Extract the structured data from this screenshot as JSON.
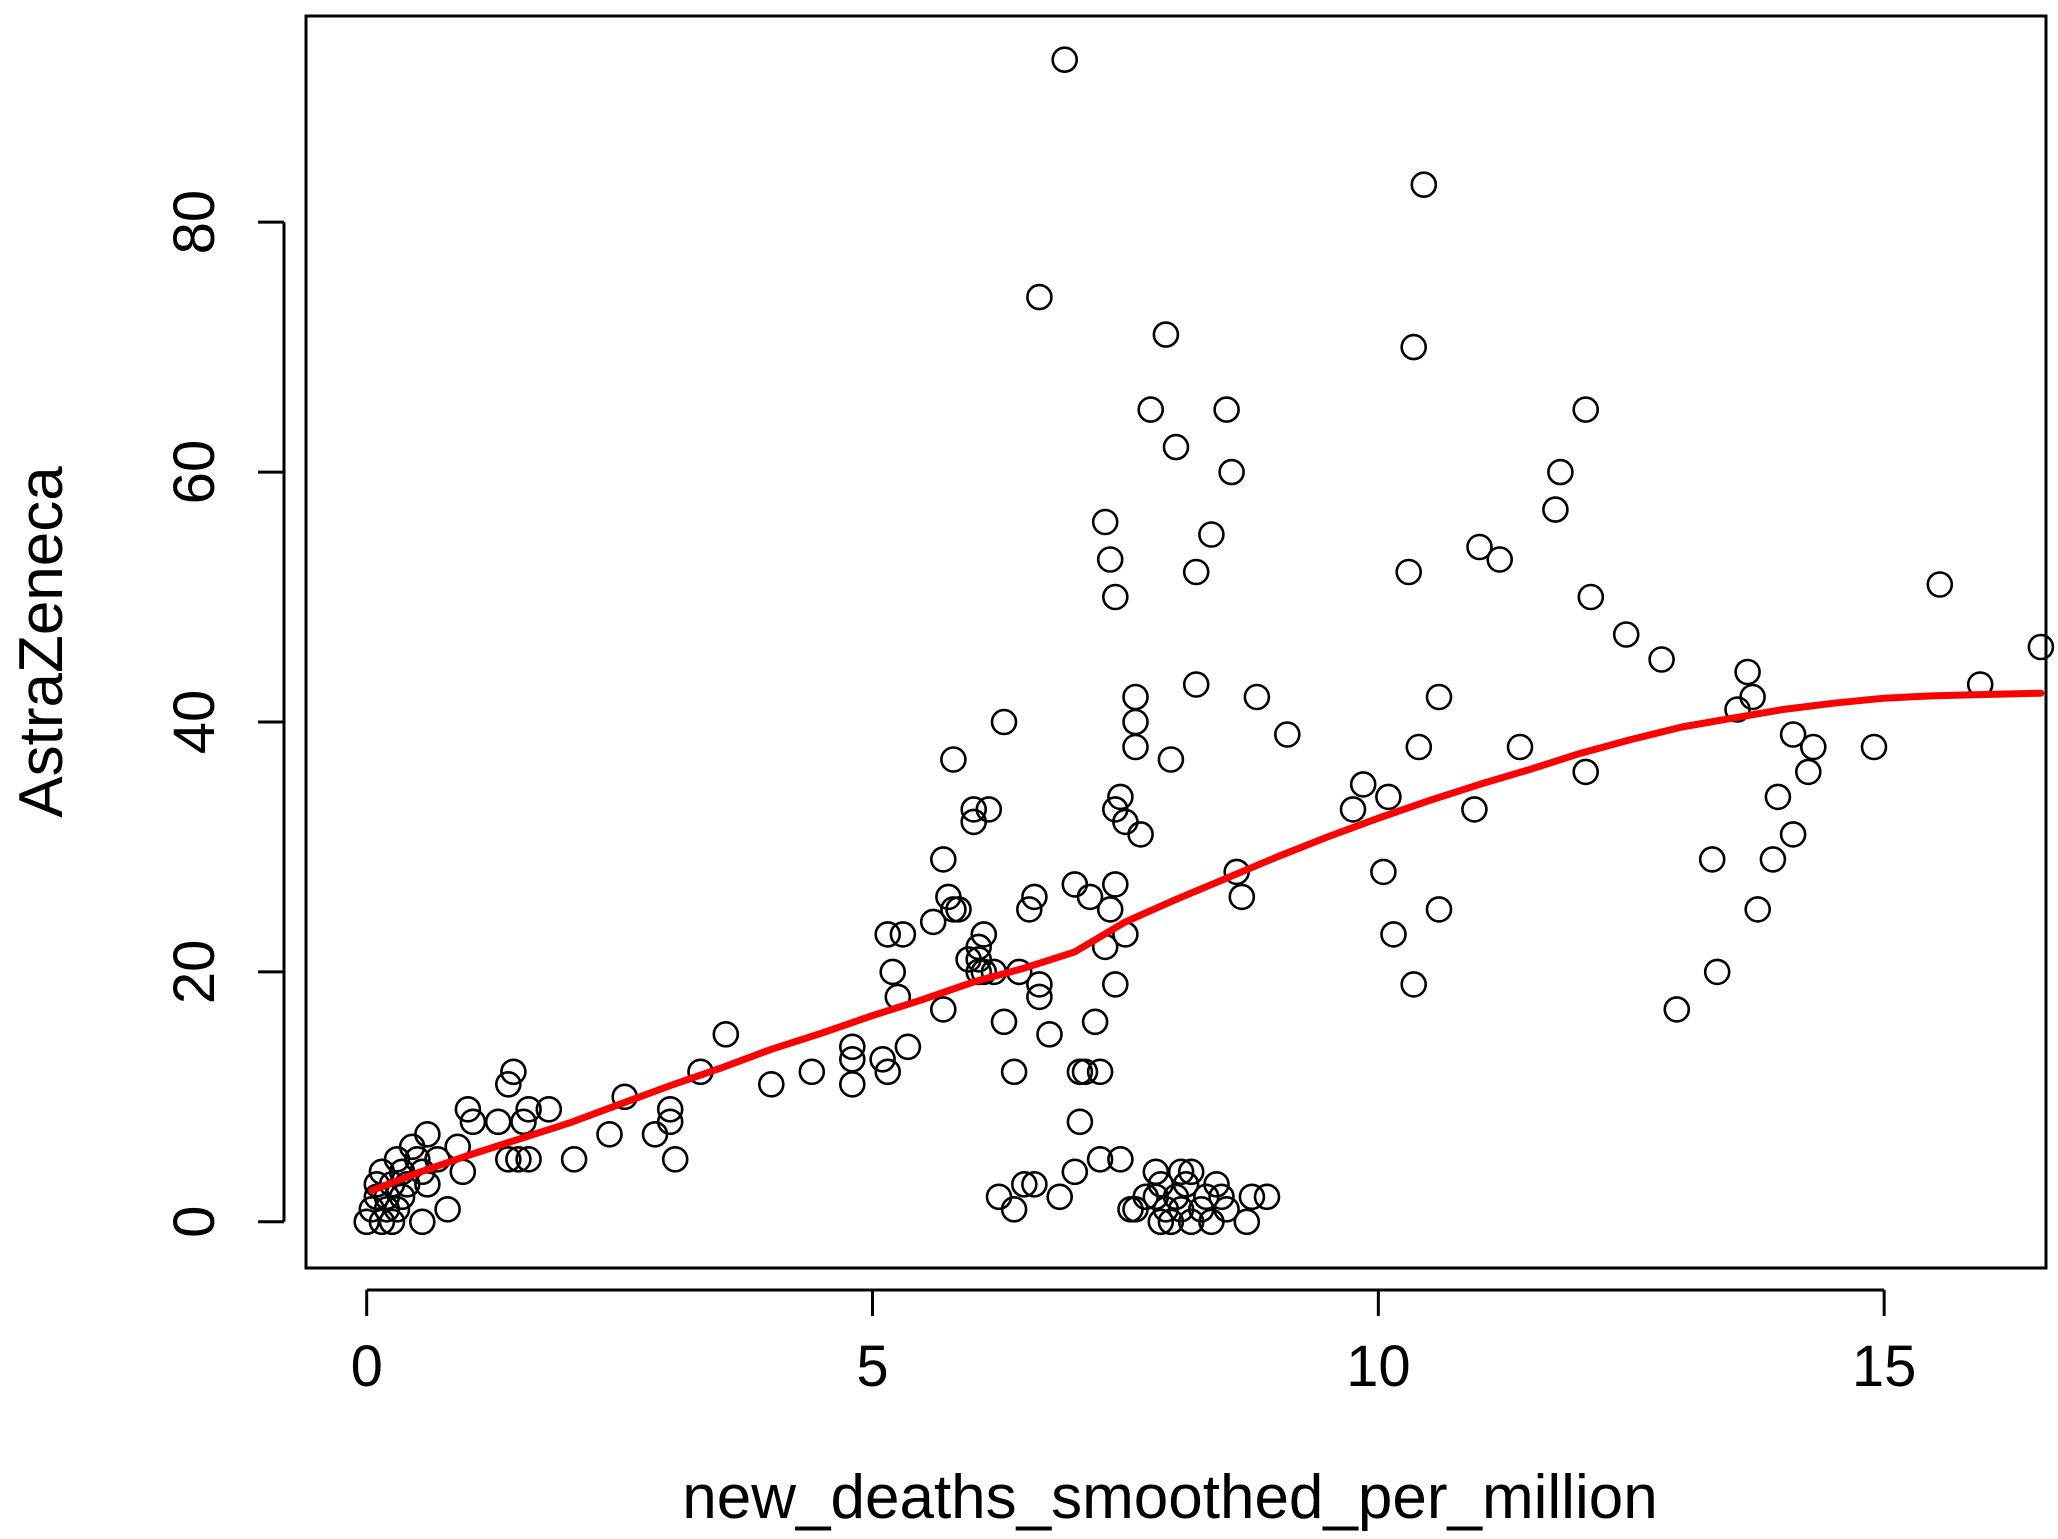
{
  "chart_data": {
    "type": "scatter",
    "title": "",
    "xlabel": "new_deaths_smoothed_per_million",
    "ylabel": "AstraZeneca",
    "xlim": [
      -0.6,
      16.6
    ],
    "ylim": [
      -3.7,
      96.5
    ],
    "x_ticks": [
      0,
      5,
      10,
      15
    ],
    "y_ticks": [
      0,
      20,
      40,
      60,
      80
    ],
    "x_tick_labels": [
      "0",
      "5",
      "10",
      "15"
    ],
    "y_tick_labels": [
      "0",
      "20",
      "40",
      "60",
      "80"
    ],
    "grid": false,
    "legend": "none",
    "colors": {
      "points": "#000000",
      "smooth_line": "#ff0000",
      "axes": "#000000",
      "background": "#ffffff"
    },
    "series": [
      {
        "type": "scatter",
        "marker": "open-circle",
        "points": [
          [
            0.0,
            0
          ],
          [
            0.05,
            1
          ],
          [
            0.1,
            2
          ],
          [
            0.1,
            3
          ],
          [
            0.15,
            0
          ],
          [
            0.15,
            4
          ],
          [
            0.2,
            1
          ],
          [
            0.2,
            2
          ],
          [
            0.25,
            0
          ],
          [
            0.25,
            3
          ],
          [
            0.3,
            1
          ],
          [
            0.3,
            5
          ],
          [
            0.35,
            2
          ],
          [
            0.35,
            4
          ],
          [
            0.4,
            3
          ],
          [
            0.45,
            6
          ],
          [
            0.5,
            5
          ],
          [
            0.55,
            4
          ],
          [
            0.55,
            0
          ],
          [
            0.6,
            3
          ],
          [
            0.6,
            7
          ],
          [
            0.7,
            5
          ],
          [
            0.8,
            1
          ],
          [
            0.9,
            6
          ],
          [
            0.95,
            4
          ],
          [
            1.0,
            9
          ],
          [
            1.05,
            8
          ],
          [
            1.3,
            8
          ],
          [
            1.4,
            11
          ],
          [
            1.4,
            5
          ],
          [
            1.45,
            12
          ],
          [
            1.5,
            5
          ],
          [
            1.55,
            8
          ],
          [
            1.6,
            9
          ],
          [
            1.6,
            5
          ],
          [
            1.8,
            9
          ],
          [
            2.05,
            5
          ],
          [
            2.4,
            7
          ],
          [
            2.55,
            10
          ],
          [
            2.85,
            7
          ],
          [
            3.0,
            9
          ],
          [
            3.0,
            8
          ],
          [
            3.05,
            5
          ],
          [
            3.3,
            12
          ],
          [
            3.55,
            15
          ],
          [
            4.0,
            11
          ],
          [
            4.4,
            12
          ],
          [
            4.8,
            14
          ],
          [
            4.8,
            13
          ],
          [
            4.8,
            11
          ],
          [
            5.1,
            13
          ],
          [
            5.15,
            12
          ],
          [
            5.15,
            23
          ],
          [
            5.2,
            20
          ],
          [
            5.25,
            18
          ],
          [
            5.3,
            23
          ],
          [
            5.35,
            14
          ],
          [
            5.6,
            24
          ],
          [
            5.7,
            29
          ],
          [
            5.7,
            17
          ],
          [
            5.75,
            26
          ],
          [
            5.8,
            25
          ],
          [
            5.8,
            37
          ],
          [
            5.85,
            25
          ],
          [
            5.95,
            21
          ],
          [
            6.0,
            33
          ],
          [
            6.0,
            32
          ],
          [
            6.05,
            22
          ],
          [
            6.05,
            21
          ],
          [
            6.05,
            20
          ],
          [
            6.1,
            23
          ],
          [
            6.1,
            20
          ],
          [
            6.15,
            33
          ],
          [
            6.2,
            20
          ],
          [
            6.25,
            2
          ],
          [
            6.3,
            40
          ],
          [
            6.3,
            16
          ],
          [
            6.4,
            12
          ],
          [
            6.4,
            1
          ],
          [
            6.45,
            20
          ],
          [
            6.5,
            3
          ],
          [
            6.55,
            25
          ],
          [
            6.6,
            26
          ],
          [
            6.6,
            3
          ],
          [
            6.65,
            19
          ],
          [
            6.65,
            18
          ],
          [
            6.65,
            74
          ],
          [
            6.75,
            15
          ],
          [
            6.85,
            2
          ],
          [
            6.9,
            93
          ],
          [
            7.0,
            4
          ],
          [
            7.0,
            27
          ],
          [
            7.05,
            12
          ],
          [
            7.05,
            8
          ],
          [
            7.1,
            12
          ],
          [
            7.15,
            26
          ],
          [
            7.2,
            16
          ],
          [
            7.25,
            5
          ],
          [
            7.25,
            12
          ],
          [
            7.3,
            56
          ],
          [
            7.3,
            22
          ],
          [
            7.35,
            53
          ],
          [
            7.35,
            25
          ],
          [
            7.4,
            50
          ],
          [
            7.4,
            33
          ],
          [
            7.4,
            27
          ],
          [
            7.4,
            19
          ],
          [
            7.45,
            5
          ],
          [
            7.45,
            34
          ],
          [
            7.5,
            32
          ],
          [
            7.5,
            23
          ],
          [
            7.55,
            1
          ],
          [
            7.6,
            42
          ],
          [
            7.6,
            40
          ],
          [
            7.6,
            38
          ],
          [
            7.6,
            1
          ],
          [
            7.65,
            31
          ],
          [
            7.7,
            2
          ],
          [
            7.75,
            65
          ],
          [
            7.8,
            4
          ],
          [
            7.8,
            2
          ],
          [
            7.85,
            0
          ],
          [
            7.85,
            3
          ],
          [
            7.9,
            1
          ],
          [
            7.9,
            71
          ],
          [
            7.95,
            0
          ],
          [
            7.95,
            37
          ],
          [
            8.0,
            62
          ],
          [
            8.0,
            2
          ],
          [
            8.05,
            4
          ],
          [
            8.05,
            1
          ],
          [
            8.1,
            3
          ],
          [
            8.15,
            0
          ],
          [
            8.15,
            4
          ],
          [
            8.2,
            43
          ],
          [
            8.2,
            52
          ],
          [
            8.25,
            1
          ],
          [
            8.3,
            2
          ],
          [
            8.35,
            0
          ],
          [
            8.35,
            55
          ],
          [
            8.4,
            3
          ],
          [
            8.45,
            2
          ],
          [
            8.5,
            65
          ],
          [
            8.5,
            1
          ],
          [
            8.55,
            60
          ],
          [
            8.6,
            28
          ],
          [
            8.65,
            26
          ],
          [
            8.7,
            0
          ],
          [
            8.75,
            2
          ],
          [
            8.8,
            42
          ],
          [
            8.9,
            2
          ],
          [
            9.1,
            39
          ],
          [
            9.75,
            33
          ],
          [
            9.85,
            35
          ],
          [
            10.05,
            28
          ],
          [
            10.1,
            34
          ],
          [
            10.15,
            23
          ],
          [
            10.3,
            52
          ],
          [
            10.35,
            70
          ],
          [
            10.35,
            19
          ],
          [
            10.4,
            38
          ],
          [
            10.45,
            83
          ],
          [
            10.6,
            42
          ],
          [
            10.6,
            25
          ],
          [
            10.95,
            33
          ],
          [
            11.0,
            54
          ],
          [
            11.2,
            53
          ],
          [
            11.4,
            38
          ],
          [
            11.75,
            57
          ],
          [
            11.8,
            60
          ],
          [
            12.05,
            65
          ],
          [
            12.05,
            36
          ],
          [
            12.1,
            50
          ],
          [
            12.45,
            47
          ],
          [
            12.8,
            45
          ],
          [
            12.95,
            17
          ],
          [
            13.3,
            29
          ],
          [
            13.35,
            20
          ],
          [
            13.55,
            41
          ],
          [
            13.65,
            44
          ],
          [
            13.7,
            42
          ],
          [
            13.75,
            25
          ],
          [
            13.9,
            29
          ],
          [
            13.95,
            34
          ],
          [
            14.1,
            31
          ],
          [
            14.1,
            39
          ],
          [
            14.25,
            36
          ],
          [
            14.3,
            38
          ],
          [
            14.9,
            38
          ],
          [
            15.55,
            51
          ],
          [
            15.95,
            43
          ],
          [
            16.55,
            46
          ]
        ]
      },
      {
        "type": "line",
        "style": "smoothed-trend",
        "points": [
          [
            0.05,
            2.5
          ],
          [
            0.5,
            3.9
          ],
          [
            1.0,
            5.3
          ],
          [
            1.5,
            6.6
          ],
          [
            2.0,
            7.9
          ],
          [
            2.5,
            9.4
          ],
          [
            3.0,
            10.9
          ],
          [
            3.5,
            12.3
          ],
          [
            4.0,
            13.8
          ],
          [
            4.5,
            15.1
          ],
          [
            5.0,
            16.5
          ],
          [
            5.5,
            17.8
          ],
          [
            6.0,
            19.2
          ],
          [
            6.5,
            20.3
          ],
          [
            7.0,
            21.6
          ],
          [
            7.5,
            24.0
          ],
          [
            8.0,
            25.8
          ],
          [
            8.5,
            27.5
          ],
          [
            9.0,
            29.2
          ],
          [
            9.5,
            30.8
          ],
          [
            10.0,
            32.3
          ],
          [
            10.5,
            33.7
          ],
          [
            11.0,
            35.0
          ],
          [
            11.5,
            36.2
          ],
          [
            12.0,
            37.5
          ],
          [
            12.5,
            38.6
          ],
          [
            13.0,
            39.6
          ],
          [
            13.5,
            40.3
          ],
          [
            14.0,
            41.0
          ],
          [
            14.5,
            41.5
          ],
          [
            15.0,
            41.9
          ],
          [
            15.5,
            42.1
          ],
          [
            16.0,
            42.2
          ],
          [
            16.55,
            42.3
          ]
        ]
      }
    ]
  }
}
